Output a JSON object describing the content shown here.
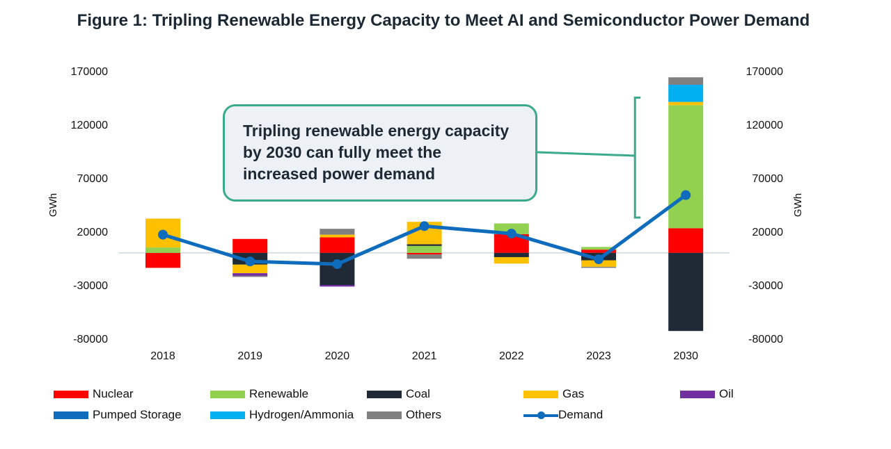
{
  "title": "Figure 1: Tripling Renewable Energy Capacity to Meet AI and Semiconductor Power Demand",
  "callout": "Tripling renewable energy capacity by 2030 can fully meet the increased power demand",
  "chart_data": {
    "type": "bar",
    "stacked": true,
    "categories": [
      "2018",
      "2019",
      "2020",
      "2021",
      "2022",
      "2023",
      "2030"
    ],
    "ylim": [
      -80000,
      170000
    ],
    "yticks": [
      "170000",
      "120000",
      "70000",
      "20000",
      "-30000",
      "-80000"
    ],
    "ylabel_left": "GWh",
    "ylabel_right": "GWh",
    "colors": {
      "Nuclear": "#ff0000",
      "Renewable": "#92d050",
      "Coal": "#1f2a36",
      "Gas": "#ffc000",
      "Oil": "#7030a0",
      "Pumped Storage": "#0f6cbd",
      "Hydrogen/Ammonia": "#00b0f0",
      "Others": "#808080",
      "Demand": "#0f6cbd"
    },
    "series": [
      {
        "name": "Nuclear",
        "values": [
          -14000,
          13000,
          14500,
          -1500,
          17500,
          3000,
          23000
        ]
      },
      {
        "name": "Renewable",
        "values": [
          5000,
          0,
          0,
          6500,
          10000,
          2500,
          115000
        ]
      },
      {
        "name": "Coal",
        "values": [
          0,
          -11000,
          -30000,
          1500,
          -4000,
          -7000,
          -73000
        ]
      },
      {
        "name": "Gas",
        "values": [
          27000,
          -8000,
          2500,
          21000,
          -6000,
          -6000,
          3000
        ]
      },
      {
        "name": "Oil",
        "values": [
          0,
          -2500,
          -1500,
          0,
          0,
          0,
          0
        ]
      },
      {
        "name": "Pumped Storage",
        "values": [
          0,
          0,
          0,
          0,
          0,
          0,
          0
        ]
      },
      {
        "name": "Hydrogen/Ammonia",
        "values": [
          0,
          0,
          0,
          0,
          0,
          0,
          16000
        ]
      },
      {
        "name": "Others",
        "values": [
          0,
          -1000,
          5500,
          -4000,
          0,
          -1000,
          7000
        ]
      }
    ],
    "line": {
      "name": "Demand",
      "values": [
        17000,
        -8000,
        -10500,
        25000,
        18000,
        -6000,
        54000
      ]
    },
    "legend": [
      "Nuclear",
      "Renewable",
      "Coal",
      "Gas",
      "Oil",
      "Pumped Storage",
      "Hydrogen/Ammonia",
      "Others",
      "Demand"
    ]
  }
}
